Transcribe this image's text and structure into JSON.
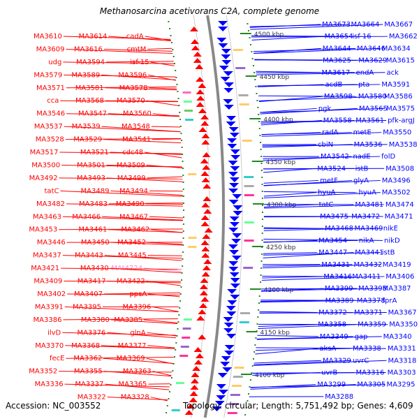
{
  "title": "Methanosarcina acetivorans C2A, complete genome",
  "footer": {
    "accession": "Accession: NC_003552",
    "summary": "Topology: circular; Length: 5,751,492 bp; Genes: 4,609"
  },
  "colors": {
    "forward": "#ff0000",
    "reverse": "#0000ff",
    "rna": "#ff88cc",
    "backbone": "#888888",
    "tick": "#228822"
  },
  "position_markers": [
    "4500 kbp",
    "4450 kbp",
    "4400 kbp",
    "4350 kbp",
    "4300 kbp",
    "4250 kbp",
    "4200 kbp",
    "4150 kbp",
    "4100 kbp"
  ],
  "left_labels": [
    {
      "t": "cadA"
    },
    {
      "t": "MA3614"
    },
    {
      "t": "MA3610"
    },
    {
      "t": "cmtM"
    },
    {
      "t": "MA3616"
    },
    {
      "t": "MA3609"
    },
    {
      "t": "isf-15"
    },
    {
      "t": "MA3594"
    },
    {
      "t": "udg"
    },
    {
      "t": "MA3596"
    },
    {
      "t": "MA3589"
    },
    {
      "t": "MA3579"
    },
    {
      "t": "MA3578"
    },
    {
      "t": "MA3581"
    },
    {
      "t": "MA3571"
    },
    {
      "t": "MA3570"
    },
    {
      "t": "MA3568"
    },
    {
      "t": "cca"
    },
    {
      "t": "MA3560"
    },
    {
      "t": "MA3547"
    },
    {
      "t": "MA3546"
    },
    {
      "t": "MA3548"
    },
    {
      "t": "MA3539"
    },
    {
      "t": "MA3537"
    },
    {
      "t": "MA3541"
    },
    {
      "t": "MA3529"
    },
    {
      "t": "MA3528"
    },
    {
      "t": "cdc48"
    },
    {
      "t": "MA3521"
    },
    {
      "t": "MA3517"
    },
    {
      "t": "MA3509"
    },
    {
      "t": "MA3501"
    },
    {
      "t": "MA3500"
    },
    {
      "t": "MA3499"
    },
    {
      "t": "MA3493"
    },
    {
      "t": "MA3492"
    },
    {
      "t": "MA3494"
    },
    {
      "t": "MA3489"
    },
    {
      "t": "tatC"
    },
    {
      "t": "MA3490"
    },
    {
      "t": "MA3483"
    },
    {
      "t": "MA3482"
    },
    {
      "t": "MA3467"
    },
    {
      "t": "MA3466"
    },
    {
      "t": "MA3463"
    },
    {
      "t": "MA3462"
    },
    {
      "t": "MA3461"
    },
    {
      "t": "MA3453"
    },
    {
      "t": "MA3452"
    },
    {
      "t": "MA3450"
    },
    {
      "t": "MA3446"
    },
    {
      "t": "MA3445"
    },
    {
      "t": "MA3443"
    },
    {
      "t": "MA3437"
    },
    {
      "t": "MAt4724",
      "rna": true
    },
    {
      "t": "MA3430"
    },
    {
      "t": "MA3421"
    },
    {
      "t": "MA3422"
    },
    {
      "t": "MA3417"
    },
    {
      "t": "MA3409"
    },
    {
      "t": "ppsA"
    },
    {
      "t": "MA3407"
    },
    {
      "t": "MA3402"
    },
    {
      "t": "MA3396"
    },
    {
      "t": "MA3395"
    },
    {
      "t": "MA3391"
    },
    {
      "t": "MA3385"
    },
    {
      "t": "MA3380"
    },
    {
      "t": "MA3386"
    },
    {
      "t": "glnA"
    },
    {
      "t": "MA3376"
    },
    {
      "t": "ilvD"
    },
    {
      "t": "MA3377"
    },
    {
      "t": "MA3368"
    },
    {
      "t": "MA3370"
    },
    {
      "t": "MA3369"
    },
    {
      "t": "MA3362"
    },
    {
      "t": "fecE"
    },
    {
      "t": "MA3363"
    },
    {
      "t": "MA3355"
    },
    {
      "t": "MA3352"
    },
    {
      "t": "MA3365"
    },
    {
      "t": "MA3337"
    },
    {
      "t": "MA3336"
    },
    {
      "t": "MA3328"
    },
    {
      "t": "MA3322"
    }
  ],
  "right_labels": [
    {
      "t": "MA3673"
    },
    {
      "t": "MA3664"
    },
    {
      "t": "MA3667"
    },
    {
      "t": "MA3654"
    },
    {
      "t": "isf-16"
    },
    {
      "t": "MA3662"
    },
    {
      "t": "MA3644"
    },
    {
      "t": "MA3646"
    },
    {
      "t": "MA3634"
    },
    {
      "t": "MA3625"
    },
    {
      "t": "MA3629"
    },
    {
      "t": "MA3615"
    },
    {
      "t": "MA3617"
    },
    {
      "t": "endA"
    },
    {
      "t": "ack"
    },
    {
      "t": "acdB"
    },
    {
      "t": "pta"
    },
    {
      "t": "MA3591"
    },
    {
      "t": "MA3598"
    },
    {
      "t": "MA3580"
    },
    {
      "t": "MA3586"
    },
    {
      "t": "pgk"
    },
    {
      "t": "MA3565"
    },
    {
      "t": "MA3575"
    },
    {
      "t": "MA3558"
    },
    {
      "t": "MA3561"
    },
    {
      "t": "pfk-argJ"
    },
    {
      "t": "radA"
    },
    {
      "t": "metE"
    },
    {
      "t": "MA3550"
    },
    {
      "t": "cbiN"
    },
    {
      "t": "MA3536"
    },
    {
      "t": "MA3538"
    },
    {
      "t": "MA3542"
    },
    {
      "t": "nadE"
    },
    {
      "t": "folD"
    },
    {
      "t": "MA3524"
    },
    {
      "t": "istB"
    },
    {
      "t": "MA3508"
    },
    {
      "t": "metF"
    },
    {
      "t": "glyA"
    },
    {
      "t": "MA3496"
    },
    {
      "t": "hyuA"
    },
    {
      "t": "hyuA"
    },
    {
      "t": "MA3502"
    },
    {
      "t": "tatC"
    },
    {
      "t": "MA3481"
    },
    {
      "t": "MA3474"
    },
    {
      "t": "MA3475"
    },
    {
      "t": "MA3472"
    },
    {
      "t": "MA3471"
    },
    {
      "t": "MA3468"
    },
    {
      "t": "MA3469"
    },
    {
      "t": "nikE"
    },
    {
      "t": "MA3454"
    },
    {
      "t": "nikA"
    },
    {
      "t": "nikD"
    },
    {
      "t": "MA3447"
    },
    {
      "t": "MA3441"
    },
    {
      "t": "istB"
    },
    {
      "t": "MA3431"
    },
    {
      "t": "MA3432"
    },
    {
      "t": "MA3419"
    },
    {
      "t": "MA3416"
    },
    {
      "t": "MA3411"
    },
    {
      "t": "MA3406"
    },
    {
      "t": "MA3399"
    },
    {
      "t": "MA3398"
    },
    {
      "t": "MA3387"
    },
    {
      "t": "MA3389"
    },
    {
      "t": "MA3378"
    },
    {
      "t": "fprA"
    },
    {
      "t": "MA3372"
    },
    {
      "t": "MA3371"
    },
    {
      "t": "MA3367"
    },
    {
      "t": "MA3358"
    },
    {
      "t": "MA3359"
    },
    {
      "t": "MA3350"
    },
    {
      "t": "MA3349"
    },
    {
      "t": "gap"
    },
    {
      "t": "MA3340"
    },
    {
      "t": "aksA"
    },
    {
      "t": "MA3338"
    },
    {
      "t": "MA3331"
    },
    {
      "t": "MA3329"
    },
    {
      "t": "uvrC"
    },
    {
      "t": "MA3318"
    },
    {
      "t": "uvrB"
    },
    {
      "t": "MA3316"
    },
    {
      "t": "MA3303"
    },
    {
      "t": "MA3299"
    },
    {
      "t": "MA3305"
    },
    {
      "t": "MA3295"
    },
    {
      "t": "MA3288"
    }
  ]
}
